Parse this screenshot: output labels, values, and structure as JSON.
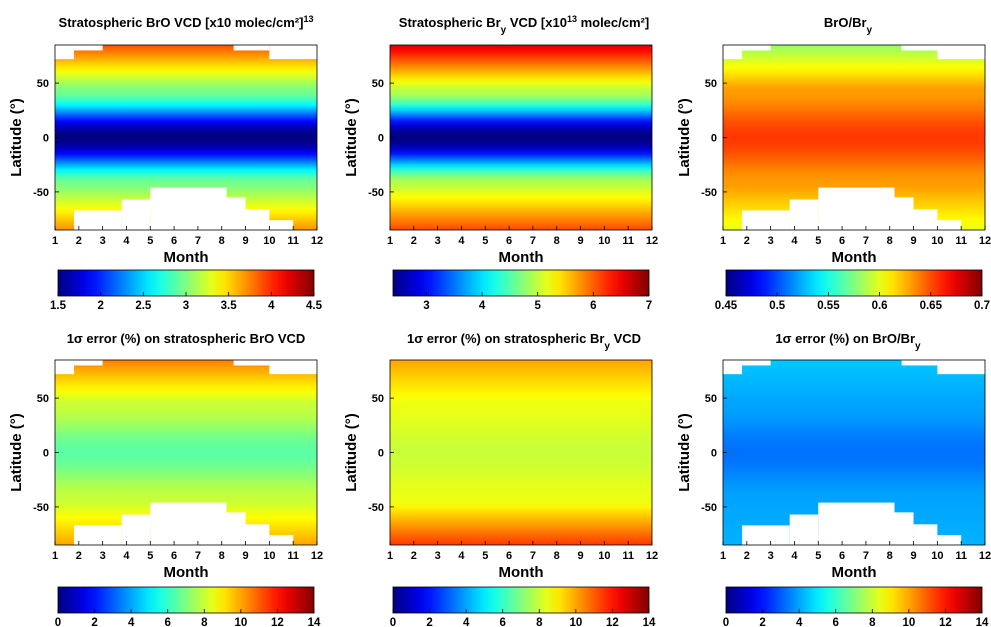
{
  "chart_data": [
    {
      "type": "heatmap",
      "title": "Stratospheric BrO VCD  [x10",
      "title_sup": "13",
      "title_tail": " molec/cm²]",
      "xlabel": "Month",
      "ylabel": "Latitude (°)",
      "x": [
        1,
        2,
        3,
        4,
        5,
        6,
        7,
        8,
        9,
        10,
        11,
        12
      ],
      "x_ticks": [
        "1",
        "2",
        "3",
        "4",
        "5",
        "6",
        "7",
        "8",
        "9",
        "10",
        "11",
        "12"
      ],
      "y_ticks": [
        "50",
        "0",
        "-50"
      ],
      "ylim": [
        -85,
        85
      ],
      "colorbar_ticks": [
        "1.5",
        "2",
        "2.5",
        "3",
        "3.5",
        "4",
        "4.5"
      ],
      "clim": [
        1.5,
        4.5
      ],
      "colormap": "jet",
      "field": {
        "eq": 1.5,
        "mid": 3.0,
        "pole_n": 3.9,
        "pole_s": 3.7
      },
      "mask": "bro"
    },
    {
      "type": "heatmap",
      "title": "Stratospheric Br",
      "title_sub": "y",
      "title_tail": " VCD [x10",
      "title_sup": "13",
      "title_tail2": " molec/cm²]",
      "xlabel": "Month",
      "ylabel": "Latitude (°)",
      "x": [
        1,
        2,
        3,
        4,
        5,
        6,
        7,
        8,
        9,
        10,
        11,
        12
      ],
      "x_ticks": [
        "1",
        "2",
        "3",
        "4",
        "5",
        "6",
        "7",
        "8",
        "9",
        "10",
        "11",
        "12"
      ],
      "y_ticks": [
        "50",
        "0",
        "-50"
      ],
      "ylim": [
        -85,
        85
      ],
      "colorbar_ticks": [
        "3",
        "4",
        "5",
        "6",
        "7"
      ],
      "clim": [
        2.4,
        7.0
      ],
      "colormap": "jet",
      "field": {
        "eq": 2.4,
        "mid": 5.0,
        "pole_n": 6.6,
        "pole_s": 6.1
      },
      "mask": "none"
    },
    {
      "type": "heatmap",
      "title": "BrO/Br",
      "title_sub": "y",
      "xlabel": "Month",
      "ylabel": "Latitude (°)",
      "x": [
        1,
        2,
        3,
        4,
        5,
        6,
        7,
        8,
        9,
        10,
        11,
        12
      ],
      "x_ticks": [
        "1",
        "2",
        "3",
        "4",
        "5",
        "6",
        "7",
        "8",
        "9",
        "10",
        "11",
        "12"
      ],
      "y_ticks": [
        "50",
        "0",
        "-50"
      ],
      "ylim": [
        -85,
        85
      ],
      "colorbar_ticks": [
        "0.45",
        "0.5",
        "0.55",
        "0.6",
        "0.65",
        "0.7"
      ],
      "clim": [
        0.45,
        0.7
      ],
      "colormap": "jet",
      "field": {
        "eq": 0.655,
        "mid": 0.63,
        "pole_n": 0.58,
        "pole_s": 0.6
      },
      "mask": "bro"
    },
    {
      "type": "heatmap",
      "title": "1σ  error (%) on stratospheric BrO VCD",
      "xlabel": "Month",
      "ylabel": "Latitude (°)",
      "x": [
        1,
        2,
        3,
        4,
        5,
        6,
        7,
        8,
        9,
        10,
        11,
        12
      ],
      "x_ticks": [
        "1",
        "2",
        "3",
        "4",
        "5",
        "6",
        "7",
        "8",
        "9",
        "10",
        "11",
        "12"
      ],
      "y_ticks": [
        "50",
        "0",
        "-50"
      ],
      "ylim": [
        -85,
        85
      ],
      "colorbar_ticks": [
        "0",
        "2",
        "4",
        "6",
        "8",
        "10",
        "12",
        "14"
      ],
      "clim": [
        0,
        14
      ],
      "colormap": "jet",
      "field": {
        "eq": 6.5,
        "mid": 8.0,
        "pole_n": 10.5,
        "pole_s": 10.0
      },
      "mask": "bro"
    },
    {
      "type": "heatmap",
      "title": "1σ  error (%) on stratospheric Br",
      "title_sub": "y",
      "title_tail": " VCD",
      "xlabel": "Month",
      "ylabel": "Latitude (°)",
      "x": [
        1,
        2,
        3,
        4,
        5,
        6,
        7,
        8,
        9,
        10,
        11,
        12
      ],
      "x_ticks": [
        "1",
        "2",
        "3",
        "4",
        "5",
        "6",
        "7",
        "8",
        "9",
        "10",
        "11",
        "12"
      ],
      "y_ticks": [
        "50",
        "0",
        "-50"
      ],
      "ylim": [
        -85,
        85
      ],
      "colorbar_ticks": [
        "0",
        "2",
        "4",
        "6",
        "8",
        "10",
        "12",
        "14"
      ],
      "clim": [
        0,
        14
      ],
      "colormap": "jet",
      "field": {
        "eq": 8.0,
        "mid": 8.5,
        "pole_n": 10.0,
        "pole_s": 11.5
      },
      "mask": "none"
    },
    {
      "type": "heatmap",
      "title": "1σ  error (%) on BrO/Br",
      "title_sub": "y",
      "xlabel": "Month",
      "ylabel": "Latitude (°)",
      "x": [
        1,
        2,
        3,
        4,
        5,
        6,
        7,
        8,
        9,
        10,
        11,
        12
      ],
      "x_ticks": [
        "1",
        "2",
        "3",
        "4",
        "5",
        "6",
        "7",
        "8",
        "9",
        "10",
        "11",
        "12"
      ],
      "y_ticks": [
        "50",
        "0",
        "-50"
      ],
      "ylim": [
        -85,
        85
      ],
      "colorbar_ticks": [
        "0",
        "2",
        "4",
        "6",
        "8",
        "10",
        "12",
        "14"
      ],
      "clim": [
        0,
        14
      ],
      "colormap": "jet",
      "field": {
        "eq": 3.3,
        "mid": 4.0,
        "pole_n": 4.5,
        "pole_s": 4.2
      },
      "mask": "bro"
    }
  ]
}
